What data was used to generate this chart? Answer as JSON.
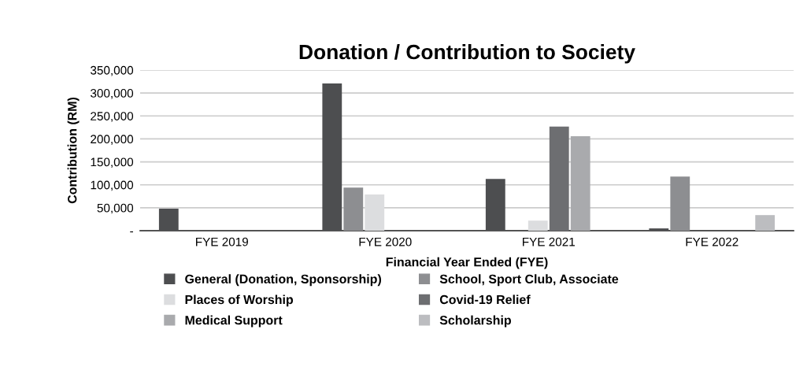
{
  "chart_data": {
    "type": "bar",
    "title": "Donation / Contribution to Society",
    "xlabel": "Financial Year Ended (FYE)",
    "ylabel": "Contribution (RM)",
    "categories": [
      "FYE 2019",
      "FYE 2020",
      "FYE 2021",
      "FYE 2022"
    ],
    "series": [
      {
        "name": "General (Donation, Sponsorship)",
        "color": "#4d4e50",
        "values": [
          48000,
          321000,
          113000,
          5000
        ]
      },
      {
        "name": "School, Sport Club, Associate",
        "color": "#8d8e91",
        "values": [
          0,
          94000,
          0,
          118000
        ]
      },
      {
        "name": "Places of Worship",
        "color": "#dcdddf",
        "values": [
          0,
          79000,
          22000,
          0
        ]
      },
      {
        "name": "Covid-19 Relief",
        "color": "#6d6e71",
        "values": [
          0,
          0,
          227000,
          0
        ]
      },
      {
        "name": "Medical Support",
        "color": "#a9aaad",
        "values": [
          0,
          0,
          206000,
          0
        ]
      },
      {
        "name": "Scholarship",
        "color": "#bcbdc0",
        "values": [
          0,
          0,
          0,
          34000
        ]
      }
    ],
    "ylim": [
      0,
      350000
    ],
    "yticks": [
      {
        "value": 0,
        "label": "-"
      },
      {
        "value": 50000,
        "label": "50,000"
      },
      {
        "value": 100000,
        "label": "100,000"
      },
      {
        "value": 150000,
        "label": "150,000"
      },
      {
        "value": 200000,
        "label": "200,000"
      },
      {
        "value": 250000,
        "label": "250,000"
      },
      {
        "value": 300000,
        "label": "300,000"
      },
      {
        "value": 350000,
        "label": "350,000"
      }
    ],
    "grid": "y",
    "legend": "bottom"
  }
}
